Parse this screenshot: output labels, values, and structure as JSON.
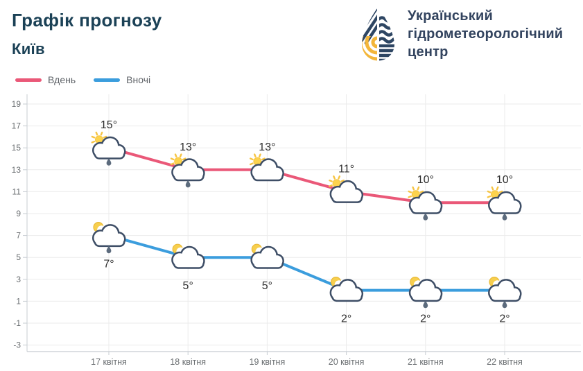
{
  "header": {
    "title": "Графік прогнозу",
    "city": "Київ"
  },
  "logo": {
    "line1": "Український",
    "line2": "гідрометеорологічний",
    "line3": "центр",
    "navy": "#2e4663",
    "yellow": "#f3b63a"
  },
  "chart_data": {
    "type": "line",
    "categories": [
      "17 квітня",
      "18 квітня",
      "19 квітня",
      "20 квітня",
      "21 квітня",
      "22 квітня"
    ],
    "series": [
      {
        "name": "Вдень",
        "color": "#ea5878",
        "values": [
          15,
          13,
          13,
          11,
          10,
          10
        ],
        "labels": [
          "15°",
          "13°",
          "13°",
          "11°",
          "10°",
          "10°"
        ],
        "icons": [
          "sun-cloud-rain",
          "sun-cloud-rain",
          "sun-cloud",
          "sun-cloud",
          "sun-cloud-rain",
          "sun-cloud-rain"
        ],
        "label_position": "above"
      },
      {
        "name": "Вночі",
        "color": "#3b9ddd",
        "values": [
          7,
          5,
          5,
          2,
          2,
          2
        ],
        "labels": [
          "7°",
          "5°",
          "5°",
          "2°",
          "2°",
          "2°"
        ],
        "icons": [
          "moon-cloud-rain",
          "moon-cloud",
          "moon-cloud",
          "moon-cloud",
          "moon-cloud-rain",
          "moon-cloud-rain"
        ],
        "label_position": "below"
      }
    ],
    "unit": "°",
    "ylim": [
      -3,
      19
    ],
    "ytick_step": 2,
    "grid": true,
    "legend_position": "top-left",
    "title": "Графік прогнозу",
    "xlabel": "",
    "ylabel": ""
  },
  "style": {
    "grid_color": "#ebebeb",
    "axis_color": "#c7ccd2",
    "tick_label_color": "#6a6e71",
    "temp_label_color": "#2e2e2e",
    "cloud_stroke": "#3e4e66",
    "sun_fill": "#fcd34d",
    "sun_ray": "#f6c443",
    "moon_fill": "#f7cf4e",
    "rain_drop": "#5c6b7d"
  }
}
